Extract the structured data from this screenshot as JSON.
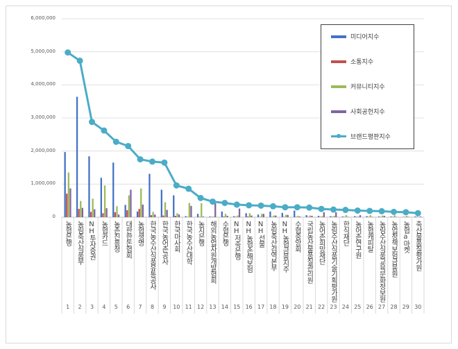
{
  "chart_data": {
    "type": "bar",
    "ylim": [
      0,
      6000000
    ],
    "yticks": [
      "0",
      "1,000,000",
      "2,000,000",
      "3,000,000",
      "4,000,000",
      "5,000,000",
      "6,000,000"
    ],
    "grid": true,
    "legend_position": "top-right",
    "categories": [
      "농협은행",
      "농림축산식품부",
      "NH투자증권",
      "농협카드",
      "농촌진흥청",
      "대한한돈협회",
      "농협생명",
      "한국농수산식품유통공사",
      "한국농어촌공사",
      "한국마사회",
      "한국농수산대학",
      "농지은행",
      "해외농업자원개발협회",
      "수협은행",
      "NH저축은행",
      "NH농협손해보험",
      "NH선물",
      "농림축산검역본부",
      "NH농협금융지주",
      "수협중앙회",
      "국립농산물품질관리원",
      "농어촌희망재단",
      "농림수산식품기술기획평가원",
      "한식재단",
      "농어촌연구원",
      "농협캐피탈",
      "농림수산식품교육문화정보원",
      "농업정책보험금융원",
      "농협a마켓",
      "축산물품질평가원"
    ],
    "numbers": [
      "1",
      "2",
      "3",
      "4",
      "5",
      "6",
      "7",
      "8",
      "9",
      "10",
      "11",
      "12",
      "13",
      "14",
      "15",
      "16",
      "17",
      "18",
      "19",
      "20",
      "21",
      "22",
      "23",
      "24",
      "25",
      "26",
      "27",
      "28",
      "29",
      "30"
    ],
    "series": [
      {
        "name": "미디어지수",
        "type": "bar",
        "color": "#4472c4",
        "values": [
          1970000,
          3640000,
          1840000,
          1190000,
          1650000,
          370000,
          170000,
          1310000,
          830000,
          660000,
          30000,
          100000,
          20000,
          170000,
          30000,
          120000,
          80000,
          170000,
          130000,
          200000,
          60000,
          40000,
          30000,
          20000,
          30000,
          30000,
          20000,
          20000,
          10000,
          20000
        ]
      },
      {
        "name": "소통지수",
        "type": "bar",
        "color": "#c0504d",
        "values": [
          710000,
          250000,
          160000,
          120000,
          150000,
          210000,
          250000,
          60000,
          50000,
          40000,
          10000,
          10000,
          10000,
          20000,
          10000,
          20000,
          10000,
          10000,
          10000,
          10000,
          10000,
          10000,
          10000,
          10000,
          10000,
          10000,
          10000,
          10000,
          10000,
          10000
        ]
      },
      {
        "name": "커뮤니티지수",
        "type": "bar",
        "color": "#9bbb59",
        "values": [
          1350000,
          490000,
          560000,
          960000,
          330000,
          660000,
          870000,
          160000,
          450000,
          120000,
          430000,
          420000,
          20000,
          100000,
          50000,
          120000,
          100000,
          50000,
          70000,
          40000,
          50000,
          30000,
          40000,
          60000,
          20000,
          60000,
          50000,
          60000,
          40000,
          10000
        ]
      },
      {
        "name": "사회공헌지수",
        "type": "bar",
        "color": "#8064a2",
        "values": [
          870000,
          280000,
          240000,
          270000,
          80000,
          830000,
          380000,
          80000,
          220000,
          80000,
          340000,
          20000,
          420000,
          40000,
          260000,
          50000,
          100000,
          50000,
          70000,
          20000,
          40000,
          150000,
          150000,
          10000,
          60000,
          10000,
          40000,
          10000,
          10000,
          20000
        ]
      },
      {
        "name": "브랜드평판지수",
        "type": "line",
        "color": "#4bacc6",
        "values": [
          4980000,
          4730000,
          2880000,
          2620000,
          2280000,
          2150000,
          1750000,
          1680000,
          1650000,
          960000,
          860000,
          580000,
          470000,
          430000,
          380000,
          360000,
          350000,
          330000,
          300000,
          300000,
          290000,
          250000,
          230000,
          220000,
          200000,
          190000,
          180000,
          160000,
          150000,
          120000
        ]
      }
    ]
  }
}
